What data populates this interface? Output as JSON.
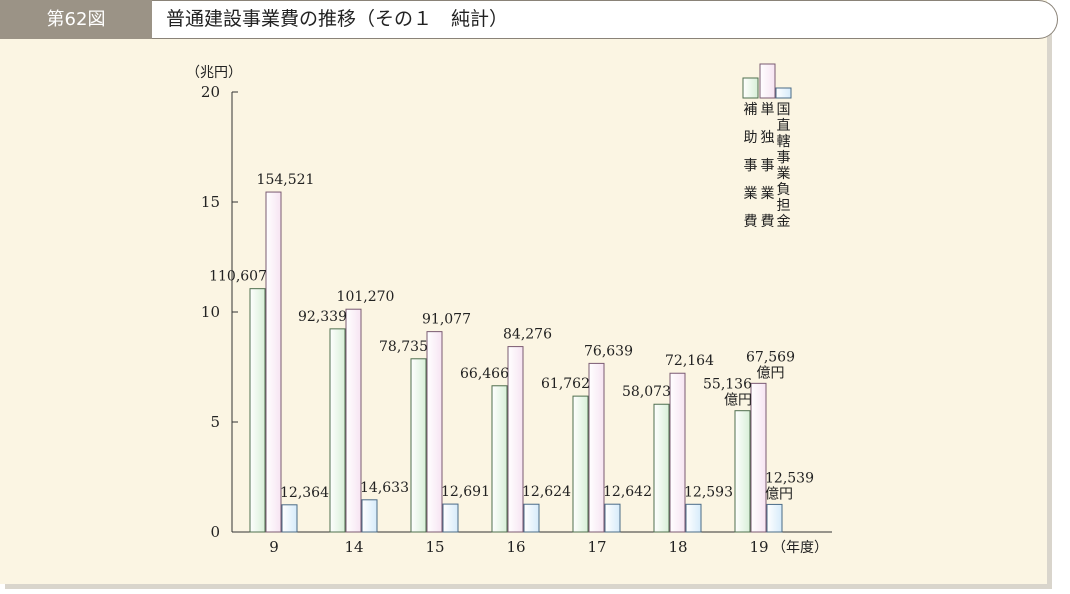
{
  "header": {
    "figure_label": "第62図",
    "title": "普通建設事業費の推移（その１　純計）"
  },
  "colors": {
    "background": "#fbf5e3",
    "label_bg": "#9b9386",
    "series": [
      "#d8efd8",
      "#f6e4f2",
      "#d6ebfa"
    ],
    "series_stroke": [
      "#4e6e4e",
      "#7a5a72",
      "#4a6a86"
    ]
  },
  "chart_data": {
    "type": "bar",
    "ylabel": "（兆円）",
    "xlabel": "（年度）",
    "ylim": [
      0,
      20
    ],
    "yticks": [
      0,
      5,
      10,
      15,
      20
    ],
    "grid": false,
    "legend_position": "top-right",
    "categories": [
      "9",
      "14",
      "15",
      "16",
      "17",
      "18",
      "19"
    ],
    "series": [
      {
        "name": "補助事業費",
        "values": [
          11.0607,
          9.2339,
          7.8735,
          6.6466,
          6.1762,
          5.8073,
          5.5136
        ],
        "labels": [
          "110,607",
          "92,339",
          "78,735",
          "66,466",
          "61,762",
          "58,073",
          "55,136"
        ]
      },
      {
        "name": "単独事業費",
        "values": [
          15.4521,
          10.127,
          9.1077,
          8.4276,
          7.6639,
          7.2164,
          6.7569
        ],
        "labels": [
          "154,521",
          "101,270",
          "91,077",
          "84,276",
          "76,639",
          "72,164",
          "67,569"
        ]
      },
      {
        "name": "国直轄事業負担金",
        "values": [
          1.2364,
          1.4633,
          1.2691,
          1.2624,
          1.2642,
          1.2593,
          1.2539
        ],
        "labels": [
          "12,364",
          "14,633",
          "12,691",
          "12,624",
          "12,642",
          "12,593",
          "12,539"
        ]
      }
    ],
    "unit_note": "億円"
  }
}
